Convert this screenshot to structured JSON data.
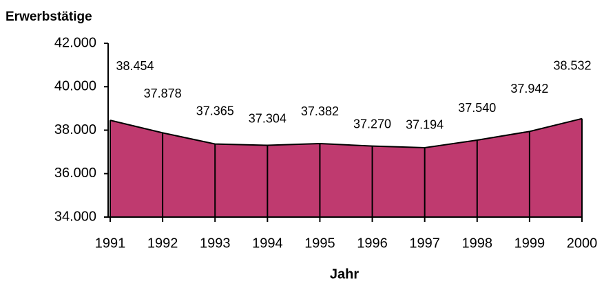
{
  "chart_data": {
    "type": "area",
    "y_axis_label": "Erwerbstätige",
    "x_axis_label": "Jahr",
    "categories": [
      "1991",
      "1992",
      "1993",
      "1994",
      "1995",
      "1996",
      "1997",
      "1998",
      "1999",
      "2000"
    ],
    "values": [
      38454,
      37878,
      37365,
      37304,
      37382,
      37270,
      37194,
      37540,
      37942,
      38532
    ],
    "value_labels": [
      "38.454",
      "37.878",
      "37.365",
      "37.304",
      "37.382",
      "37.270",
      "37.194",
      "37.540",
      "37.942",
      "38.532"
    ],
    "color": "#bf3a6f",
    "ylim": [
      34000,
      42000
    ],
    "yticks": [
      {
        "value": 34000,
        "label": "34.000"
      },
      {
        "value": 36000,
        "label": "36.000"
      },
      {
        "value": 38000,
        "label": "38.000"
      },
      {
        "value": 40000,
        "label": "40.000"
      },
      {
        "value": 42000,
        "label": "42.000"
      }
    ]
  }
}
